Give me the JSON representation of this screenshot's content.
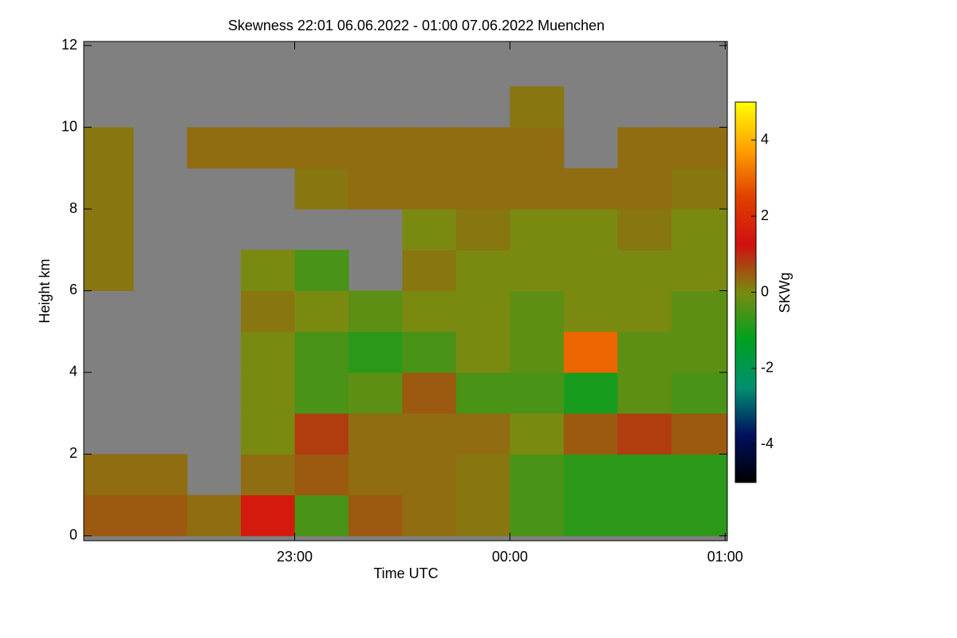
{
  "chart_data": {
    "type": "heatmap",
    "title": "Skewness   22:01 06.06.2022 - 01:00 07.06.2022 Muenchen",
    "xlabel": "Time UTC",
    "ylabel": "Height km",
    "colorbar_label": "SKWg",
    "xlim": [
      22.02,
      25.01
    ],
    "xticks": [
      {
        "value": 23,
        "label": "23:00"
      },
      {
        "value": 24,
        "label": "00:00"
      },
      {
        "value": 25,
        "label": "01:00"
      }
    ],
    "ylim": [
      -0.12,
      12.1
    ],
    "yticks": [
      0,
      2,
      4,
      6,
      8,
      10,
      12
    ],
    "x_bins": [
      22.02,
      22.25,
      22.5,
      22.75,
      23,
      23.25,
      23.5,
      23.75,
      24,
      24.25,
      24.5,
      24.75,
      25.01
    ],
    "y_bins": [
      0,
      1,
      2,
      3,
      4,
      5,
      6,
      7,
      8,
      9,
      10,
      11,
      12
    ],
    "z": [
      [
        0.5,
        0.5,
        0.3,
        1.5,
        -0.5,
        0.5,
        0.3,
        0.2,
        -0.5,
        -0.8,
        -0.8,
        -0.8
      ],
      [
        0.3,
        0.3,
        null,
        0.3,
        0.5,
        0.3,
        0.3,
        0.2,
        -0.5,
        -0.8,
        -0.8,
        -0.8
      ],
      [
        null,
        null,
        null,
        0,
        0.8,
        0.3,
        0.3,
        0.3,
        0,
        0.5,
        0.8,
        0.5
      ],
      [
        null,
        null,
        null,
        0,
        -0.5,
        -0.3,
        0.5,
        -0.5,
        -0.5,
        -1,
        -0.3,
        -0.5
      ],
      [
        null,
        null,
        null,
        0,
        -0.5,
        -0.8,
        -0.5,
        0,
        -0.3,
        3,
        -0.3,
        -0.3
      ],
      [
        null,
        null,
        null,
        0.2,
        0,
        -0.3,
        0,
        0,
        -0.3,
        0,
        0,
        -0.3
      ],
      [
        0.2,
        null,
        null,
        0,
        -0.5,
        null,
        0.2,
        0,
        0,
        0,
        0,
        0
      ],
      [
        0.2,
        null,
        null,
        null,
        null,
        null,
        0,
        0.2,
        0,
        0,
        0.2,
        0
      ],
      [
        0.2,
        null,
        null,
        null,
        0.2,
        0.3,
        0.3,
        0.3,
        0.3,
        0.3,
        0.3,
        0.2
      ],
      [
        0.2,
        null,
        0.3,
        0.3,
        0.3,
        0.3,
        0.3,
        0.3,
        0.3,
        null,
        0.3,
        0.3
      ],
      [
        null,
        null,
        null,
        null,
        null,
        null,
        null,
        null,
        0.2,
        null,
        null,
        null
      ],
      [
        null,
        null,
        null,
        null,
        null,
        null,
        null,
        null,
        null,
        null,
        null,
        null
      ]
    ],
    "zlim": [
      -5,
      5
    ],
    "zticks": [
      -4,
      -2,
      0,
      2,
      4
    ],
    "colormap": [
      "#000000",
      "#001060",
      "#009070",
      "#00a020",
      "#7a8a10",
      "#d01010",
      "#e04000",
      "#ffa000",
      "#ffff00"
    ],
    "nodata_color": "#808080"
  }
}
